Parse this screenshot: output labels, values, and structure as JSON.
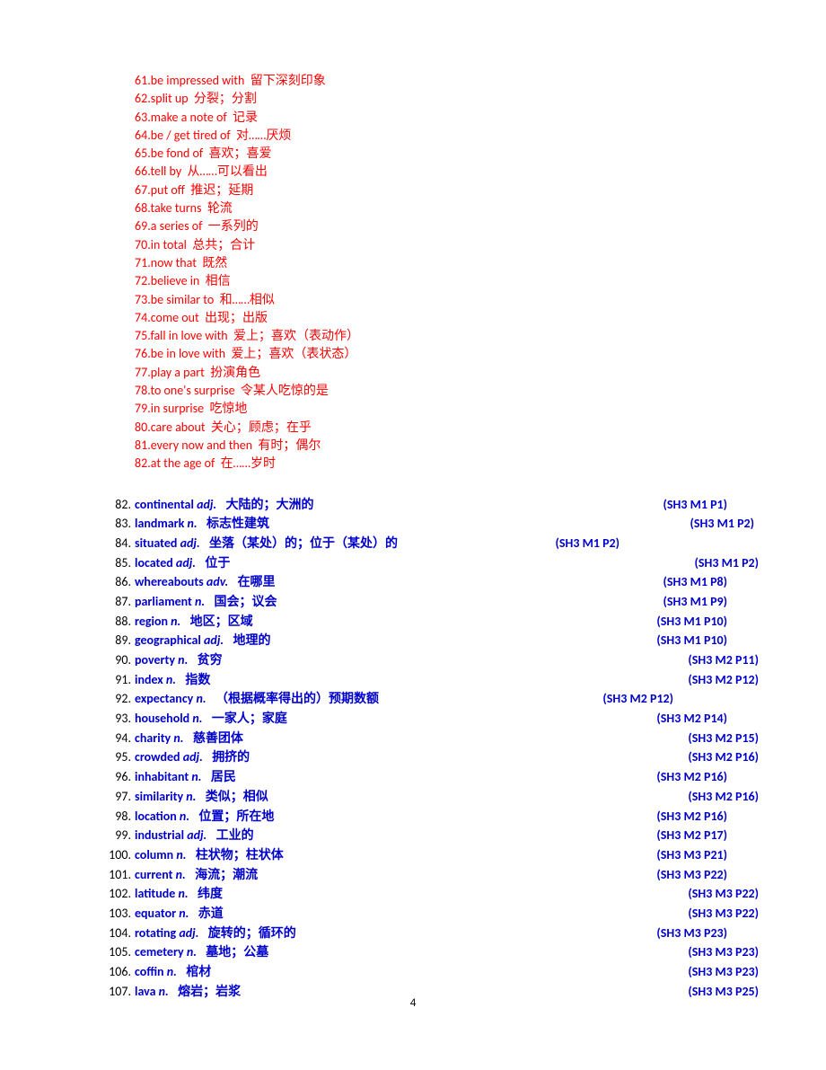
{
  "pageNumber": "4",
  "redItems": [
    {
      "num": "61",
      "phrase": "be impressed with",
      "def": "留下深刻印象"
    },
    {
      "num": "62",
      "phrase": "split up",
      "def": "分裂；分割"
    },
    {
      "num": "63",
      "phrase": "make a note of",
      "def": "记录"
    },
    {
      "num": "64",
      "phrase": "be / get tired of",
      "def": "对……厌烦"
    },
    {
      "num": "65",
      "phrase": "be fond of",
      "def": "喜欢；喜爱"
    },
    {
      "num": "66",
      "phrase": "tell by",
      "def": "从……可以看出"
    },
    {
      "num": "67",
      "phrase": "put off",
      "def": "推迟；延期"
    },
    {
      "num": "68",
      "phrase": "take turns",
      "def": "轮流"
    },
    {
      "num": "69",
      "phrase": "a series of",
      "def": "一系列的"
    },
    {
      "num": "70",
      "phrase": "in total",
      "def": "总共；合计"
    },
    {
      "num": "71",
      "phrase": "now that",
      "def": "既然"
    },
    {
      "num": "72",
      "phrase": "believe in",
      "def": "相信"
    },
    {
      "num": "73",
      "phrase": "be similar to",
      "def": "和……相似"
    },
    {
      "num": "74",
      "phrase": "come out",
      "def": "出现；出版"
    },
    {
      "num": "75",
      "phrase": "fall in love with",
      "def": "爱上；喜欢（表动作）"
    },
    {
      "num": "76",
      "phrase": "be in love with",
      "def": "爱上；喜欢（表状态）"
    },
    {
      "num": "77",
      "phrase": "play a part",
      "def": "扮演角色"
    },
    {
      "num": "78",
      "phrase": "to one's surprise",
      "def": "令某人吃惊的是"
    },
    {
      "num": "79",
      "phrase": "in surprise",
      "def": "吃惊地"
    },
    {
      "num": "80",
      "phrase": "care about",
      "def": "关心；顾虑；在乎"
    },
    {
      "num": "81",
      "phrase": "every now and then",
      "def": "有时；偶尔"
    },
    {
      "num": "82",
      "phrase": "at the age of",
      "def": "在……岁时"
    }
  ],
  "blueItems": [
    {
      "num": "82.",
      "word": "continental",
      "pos": " adj.",
      "def": "大陆的；大洲的",
      "ref": "(SH3 M1 P1)",
      "refOffset": 0
    },
    {
      "num": "83.",
      "word": "landmark",
      "pos": " n.",
      "def": "标志性建筑",
      "ref": "(SH3 M1 P2)",
      "refOffset": 30
    },
    {
      "num": "84.",
      "word": "situated",
      "pos": " adj.",
      "def": "坐落（某处）的；位于（某处）的",
      "ref": "(SH3 M1 P2)",
      "refOffset": -120
    },
    {
      "num": "85.",
      "word": "located",
      "pos": " adj.",
      "def": "位于",
      "ref": "(SH3 M1 P2)",
      "refOffset": 35
    },
    {
      "num": "86.",
      "word": "whereabouts",
      "pos": " adv.",
      "def": "在哪里",
      "ref": "(SH3 M1 P8)",
      "refOffset": 0
    },
    {
      "num": "87.",
      "word": "parliament",
      "pos": " n.",
      "def": "国会；议会",
      "ref": "(SH3 M1 P9)",
      "refOffset": 0
    },
    {
      "num": "88.",
      "word": "region",
      "pos": " n.",
      "def": "地区；区域",
      "ref": "(SH3 M1 P10)",
      "refOffset": 0
    },
    {
      "num": "89.",
      "word": "geographical",
      "pos": " adj.",
      "def": "地理的",
      "ref": "(SH3 M1 P10)",
      "refOffset": 0
    },
    {
      "num": "90.",
      "word": "poverty",
      "pos": " n.",
      "def": "贫穷",
      "ref": "(SH3 M2 P11)",
      "refOffset": 35
    },
    {
      "num": "91.",
      "word": "index",
      "pos": " n.",
      "def": "指数",
      "ref": "(SH3 M2 P12)",
      "refOffset": 35
    },
    {
      "num": "92.",
      "word": "expectancy",
      "pos": " n.",
      "def": "（根据概率得出的）预期数额",
      "ref": "(SH3 M2 P12)",
      "refOffset": -60
    },
    {
      "num": "93.",
      "word": "household",
      "pos": " n.",
      "def": "一家人；家庭",
      "ref": "(SH3 M2 P14)",
      "refOffset": 0
    },
    {
      "num": "94.",
      "word": "charity",
      "pos": " n.",
      "def": "慈善团体",
      "ref": "(SH3 M2 P15)",
      "refOffset": 35
    },
    {
      "num": "95.",
      "word": "crowded",
      "pos": " adj.",
      "def": "拥挤的",
      "ref": "(SH3 M2 P16)",
      "refOffset": 35
    },
    {
      "num": "96.",
      "word": "inhabitant",
      "pos": " n.",
      "def": "居民",
      "ref": "(SH3 M2 P16)",
      "refOffset": 0
    },
    {
      "num": "97.",
      "word": "similarity",
      "pos": " n.",
      "def": "类似；相似",
      "ref": "(SH3 M2 P16)",
      "refOffset": 35
    },
    {
      "num": "98.",
      "word": "location",
      "pos": " n.",
      "def": "位置；所在地",
      "ref": "(SH3 M2 P16)",
      "refOffset": 0
    },
    {
      "num": "99.",
      "word": "industrial",
      "pos": " adj.",
      "def": "工业的",
      "ref": "(SH3 M2 P17)",
      "refOffset": 0
    },
    {
      "num": "100.",
      "word": "column",
      "pos": " n.",
      "def": "柱状物；柱状体",
      "ref": "(SH3 M3 P21)",
      "refOffset": 0
    },
    {
      "num": "101.",
      "word": "current",
      "pos": " n.",
      "def": "海流；潮流",
      "ref": "(SH3 M3 P22)",
      "refOffset": 0
    },
    {
      "num": "102.",
      "word": "latitude",
      "pos": " n.",
      "def": "纬度",
      "ref": "(SH3 M3 P22)",
      "refOffset": 35
    },
    {
      "num": "103.",
      "word": "equator",
      "pos": " n.",
      "def": "赤道",
      "ref": "(SH3 M3 P22)",
      "refOffset": 35
    },
    {
      "num": "104.",
      "word": "rotating",
      "pos": " adj.",
      "def": "旋转的；循环的",
      "ref": "(SH3 M3 P23)",
      "refOffset": 0
    },
    {
      "num": "105.",
      "word": "cemetery",
      "pos": " n.",
      "def": "墓地；公墓",
      "ref": "(SH3 M3 P23)",
      "refOffset": 35
    },
    {
      "num": "106.",
      "word": "coffin",
      "pos": " n.",
      "def": "棺材",
      "ref": "(SH3 M3 P23)",
      "refOffset": 35
    },
    {
      "num": "107.",
      "word": "lava",
      "pos": " n.",
      "def": "熔岩；岩浆",
      "ref": "(SH3 M3 P25)",
      "refOffset": 35
    }
  ]
}
